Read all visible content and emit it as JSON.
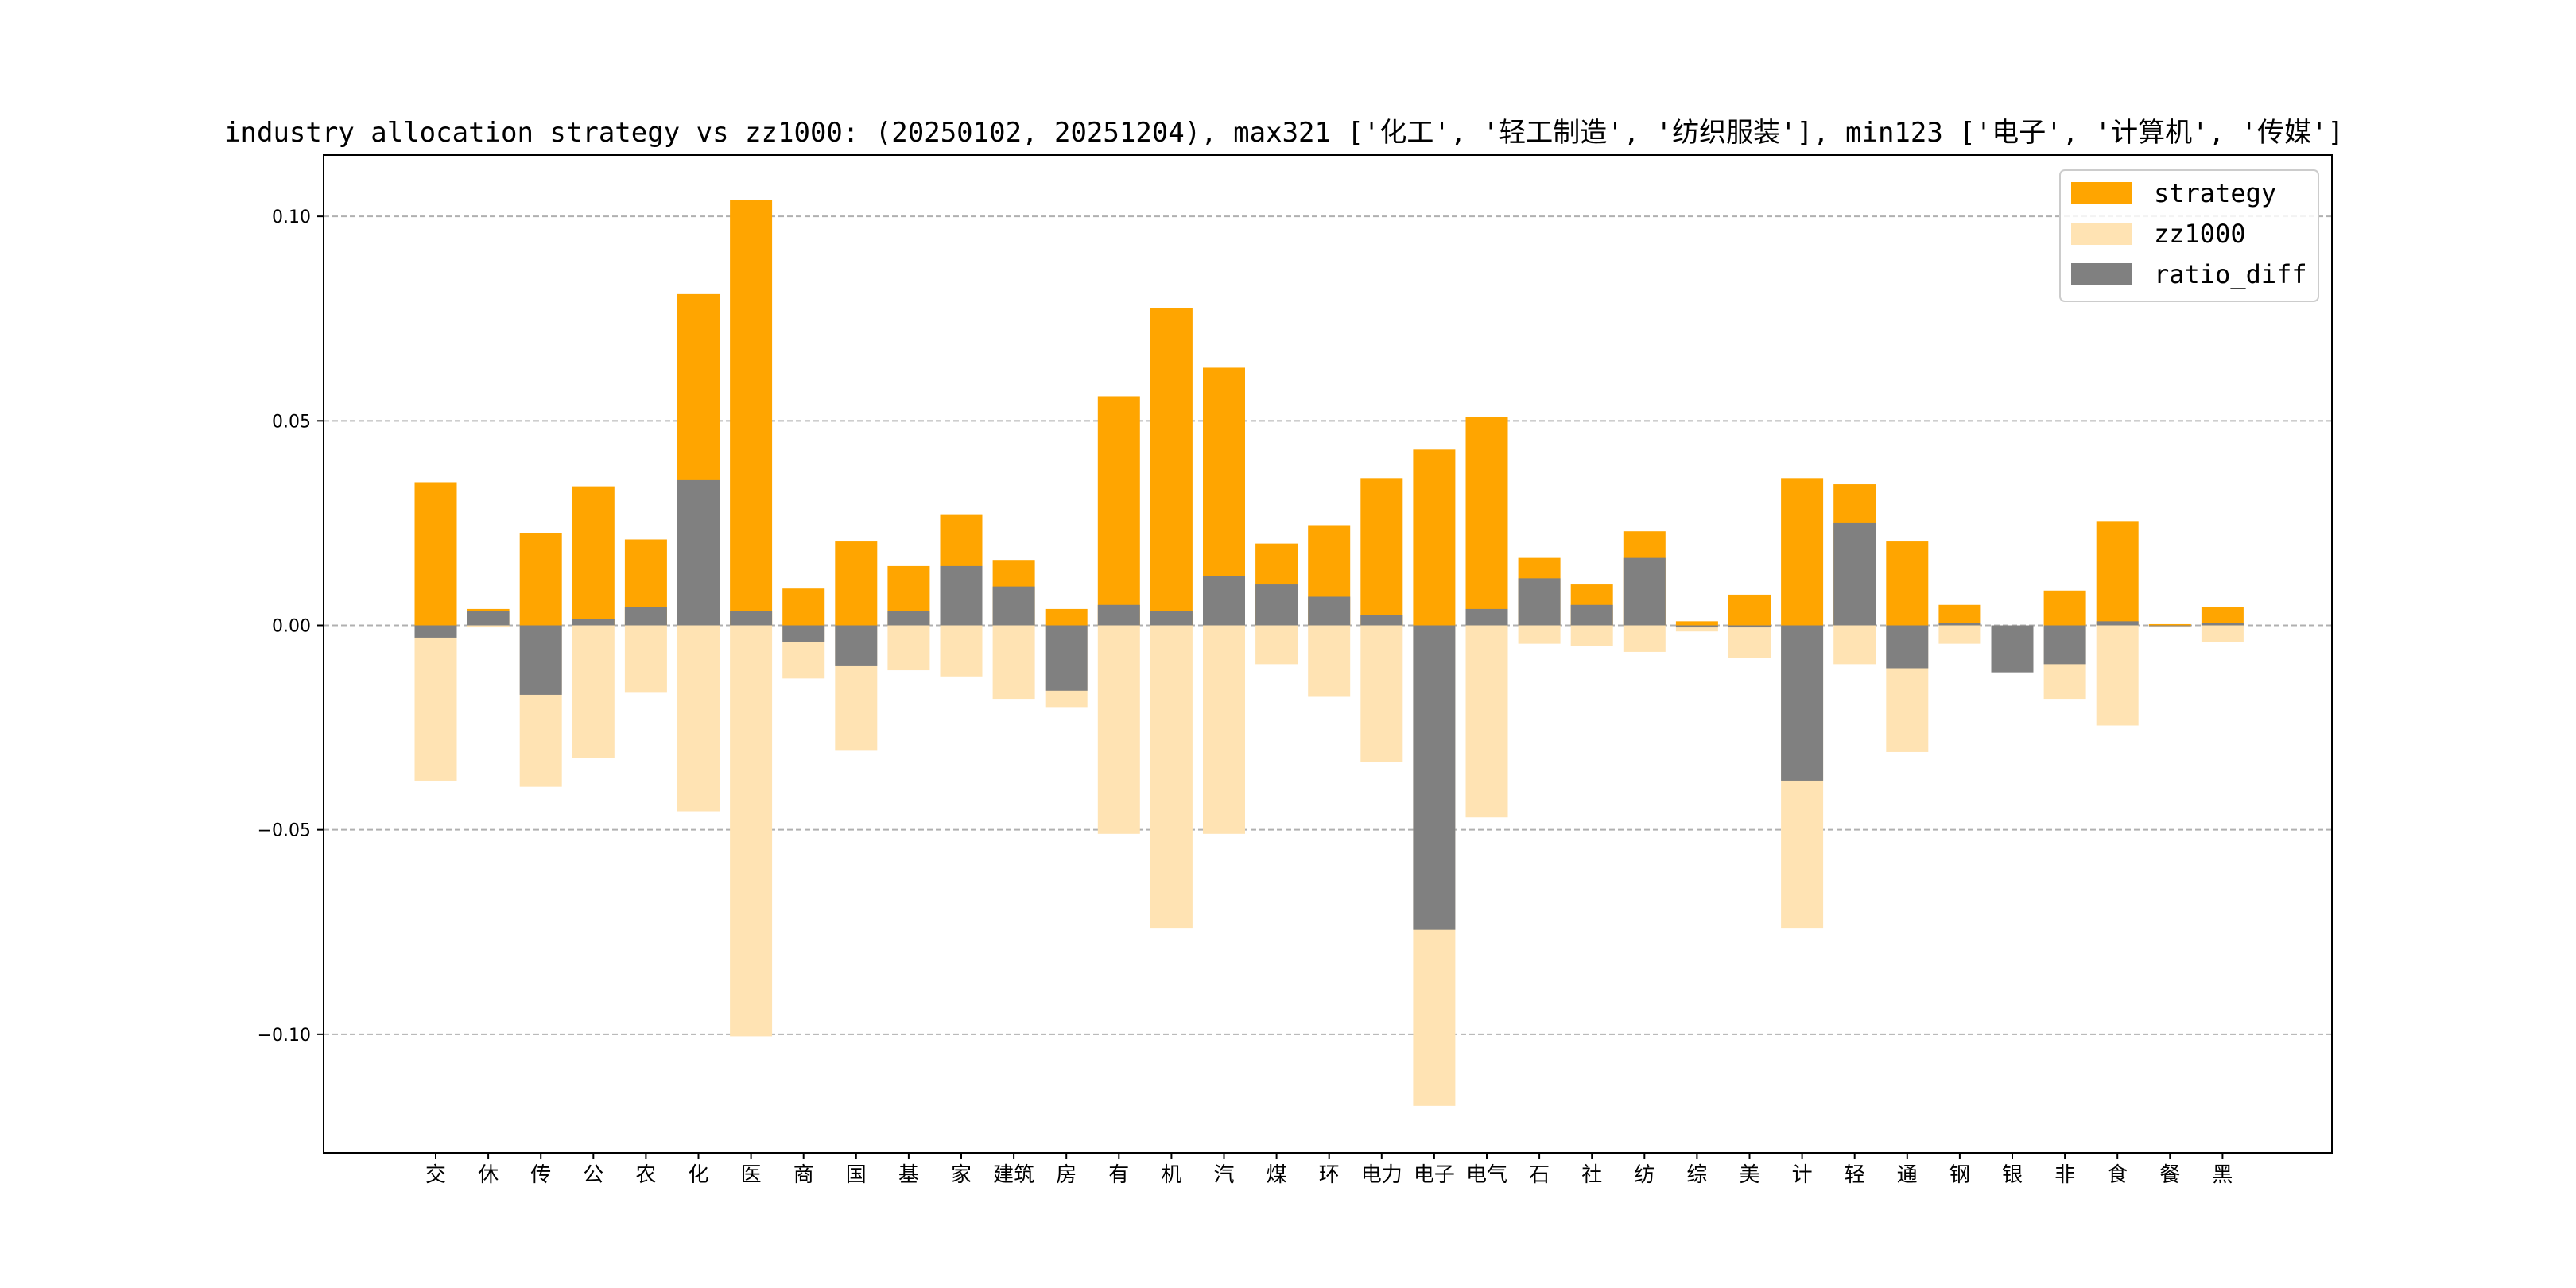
{
  "chart_data": {
    "type": "bar",
    "title": "industry allocation strategy vs zz1000: (20250102, 20251204), max321 ['化工', '轻工制造', '纺织服装'], min123 ['电子', '计算机', '传媒']",
    "xlabel": "",
    "ylabel": "",
    "ylim": [
      -0.129,
      0.115
    ],
    "yticks": [
      0.1,
      0.05,
      0.0,
      -0.05,
      -0.1
    ],
    "ytick_labels": [
      "0.10",
      "0.05",
      "0.00",
      "−0.05",
      "−0.10"
    ],
    "grid": "horizontal dashed",
    "legend_position": "top-right",
    "categories": [
      "交",
      "休",
      "传",
      "公",
      "农",
      "化",
      "医",
      "商",
      "国",
      "基",
      "家",
      "建筑",
      "房",
      "有",
      "机",
      "汽",
      "煤",
      "环",
      "电力",
      "电子",
      "电气",
      "石",
      "社",
      "纺",
      "综",
      "美",
      "计",
      "轻",
      "通",
      "钢",
      "银",
      "非",
      "食",
      "餐",
      "黑"
    ],
    "series": [
      {
        "name": "strategy",
        "color": "#FFA500",
        "values": [
          0.035,
          0.004,
          0.0225,
          0.034,
          0.021,
          0.081,
          0.104,
          0.009,
          0.0205,
          0.0145,
          0.027,
          0.016,
          0.004,
          0.056,
          0.0775,
          0.063,
          0.02,
          0.0245,
          0.036,
          0.043,
          0.051,
          0.0165,
          0.01,
          0.023,
          0.001,
          0.0075,
          0.036,
          0.0345,
          0.0205,
          0.005,
          0.0,
          0.0085,
          0.0255,
          0.0003,
          0.0045
        ]
      },
      {
        "name": "zz1000",
        "color": "#FFE3B3",
        "values": [
          -0.038,
          -0.0005,
          -0.0395,
          -0.0325,
          -0.0165,
          -0.0455,
          -0.1005,
          -0.013,
          -0.0305,
          -0.011,
          -0.0125,
          -0.018,
          -0.02,
          -0.051,
          -0.074,
          -0.051,
          -0.0095,
          -0.0175,
          -0.0335,
          -0.1175,
          -0.047,
          -0.0045,
          -0.005,
          -0.0065,
          -0.0015,
          -0.008,
          -0.074,
          -0.0095,
          -0.031,
          -0.0045,
          -0.0005,
          -0.018,
          -0.0245,
          -0.0005,
          -0.004
        ]
      },
      {
        "name": "ratio_diff",
        "color": "#808080",
        "values": [
          -0.003,
          0.0035,
          -0.017,
          0.0015,
          0.0045,
          0.0355,
          0.0035,
          -0.004,
          -0.01,
          0.0035,
          0.0145,
          0.0095,
          -0.016,
          0.005,
          0.0035,
          0.012,
          0.01,
          0.007,
          0.0025,
          -0.0745,
          0.004,
          0.0115,
          0.005,
          0.0165,
          -0.0005,
          -0.0005,
          -0.038,
          0.025,
          -0.0105,
          0.0005,
          -0.0115,
          -0.0095,
          0.001,
          -0.0002,
          0.0005
        ]
      }
    ]
  }
}
